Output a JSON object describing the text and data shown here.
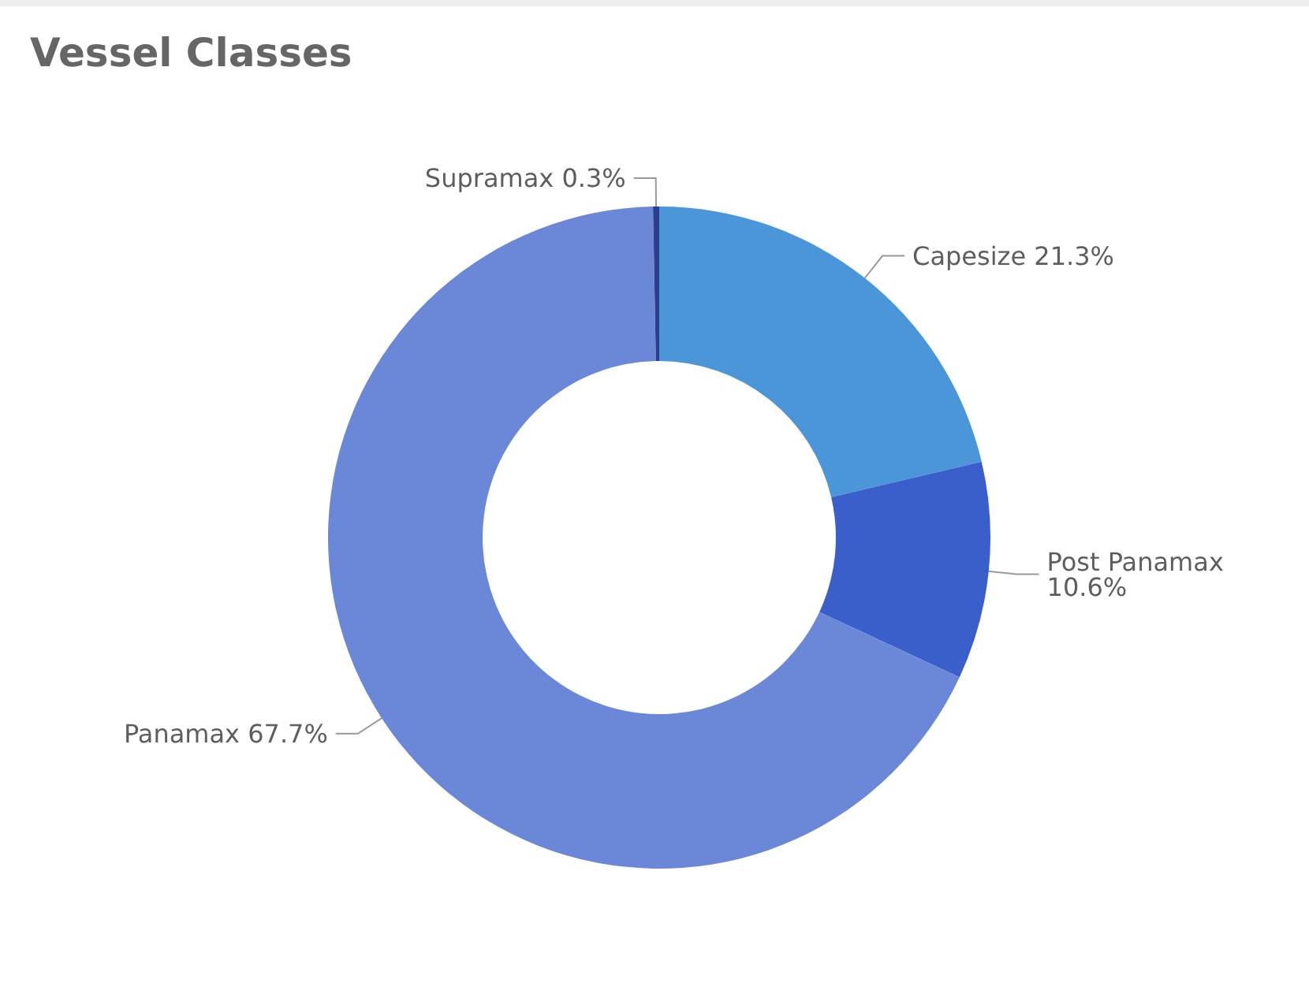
{
  "chart_data": {
    "type": "donut",
    "title": "Vessel Classes",
    "categories": [
      "Capesize",
      "Post Panamax",
      "Panamax",
      "Supramax"
    ],
    "values": [
      21.3,
      10.6,
      67.7,
      0.3
    ],
    "colors": [
      "#4a96d8",
      "#3a5fcb",
      "#6b88d8",
      "#2a3f8f"
    ],
    "value_labels": [
      "21.3%",
      "10.6%",
      "67.7%",
      "0.3%"
    ],
    "legend": false
  }
}
